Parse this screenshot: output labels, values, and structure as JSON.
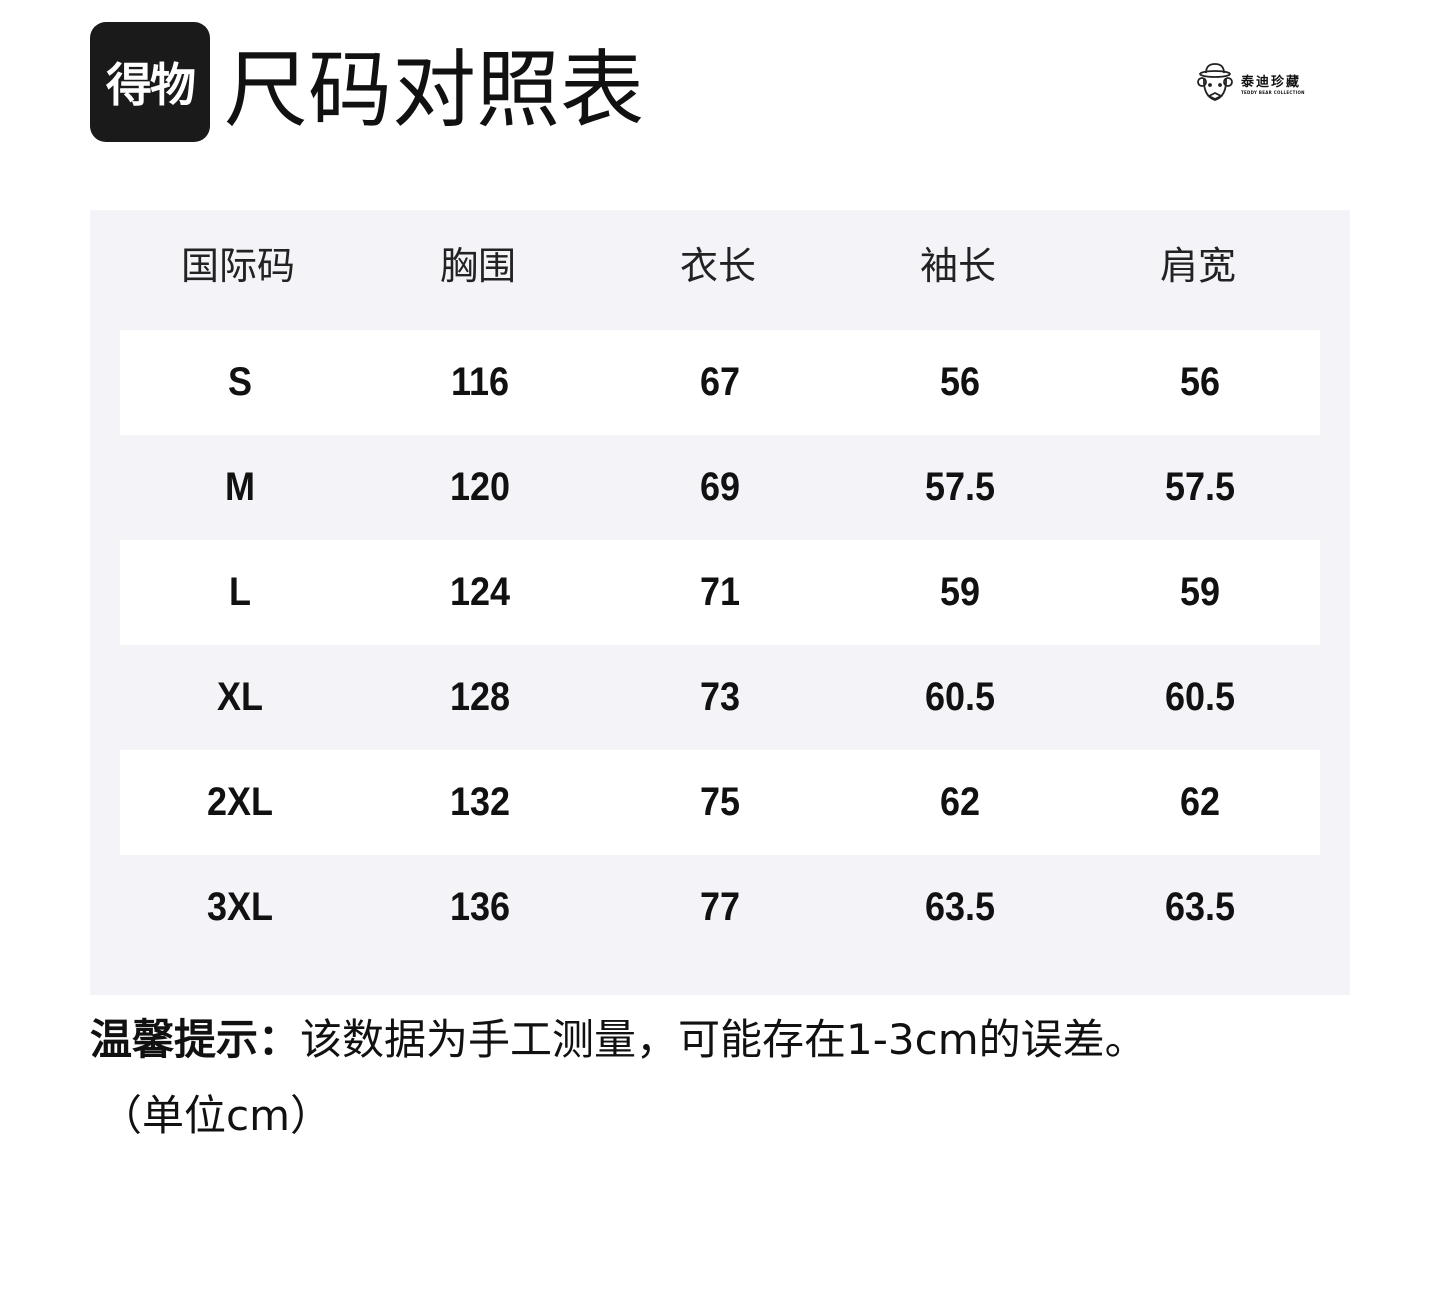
{
  "header": {
    "logo_text": "得物",
    "title": "尺码对照表",
    "brand_cn": "泰迪珍藏",
    "brand_en": "TEDDY BEAR COLLECTION"
  },
  "table": {
    "columns": [
      "国际码",
      "胸围",
      "衣长",
      "袖长",
      "肩宽"
    ],
    "rows": [
      [
        "S",
        "116",
        "67",
        "56",
        "56"
      ],
      [
        "M",
        "120",
        "69",
        "57.5",
        "57.5"
      ],
      [
        "L",
        "124",
        "71",
        "59",
        "59"
      ],
      [
        "XL",
        "128",
        "73",
        "60.5",
        "60.5"
      ],
      [
        "2XL",
        "132",
        "75",
        "62",
        "62"
      ],
      [
        "3XL",
        "136",
        "77",
        "63.5",
        "63.5"
      ]
    ]
  },
  "note": {
    "label": "温馨提示：",
    "text": "该数据为手工测量，可能存在1-3cm的误差。",
    "unit": "（单位cm）"
  }
}
